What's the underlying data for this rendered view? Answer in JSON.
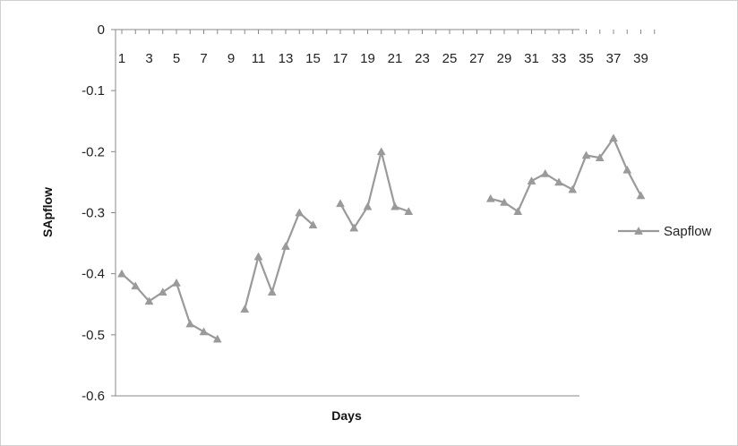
{
  "chart_data": {
    "type": "line",
    "title": "",
    "xlabel": "Days",
    "ylabel": "SApflow",
    "ylim": [
      -0.6,
      0
    ],
    "yticks": [
      0,
      -0.1,
      -0.2,
      -0.3,
      -0.4,
      -0.5,
      -0.6
    ],
    "ytick_labels": [
      "0",
      "-0.1",
      "-0.2",
      "-0.3",
      "-0.4",
      "-0.5",
      "-0.6"
    ],
    "x_range": [
      1,
      40
    ],
    "xtick_labels": [
      "1",
      "3",
      "5",
      "7",
      "9",
      "11",
      "13",
      "15",
      "17",
      "19",
      "21",
      "23",
      "25",
      "27",
      "29",
      "31",
      "33",
      "35",
      "37",
      "39"
    ],
    "xtick_values": [
      1,
      3,
      5,
      7,
      9,
      11,
      13,
      15,
      17,
      19,
      21,
      23,
      25,
      27,
      29,
      31,
      33,
      35,
      37,
      39
    ],
    "grid": false,
    "legend": "right",
    "line_color": "#9a9a9a",
    "series": [
      {
        "name": "Sapflow",
        "x": [
          1,
          2,
          3,
          4,
          5,
          6,
          7,
          8,
          9,
          10,
          11,
          12,
          13,
          14,
          15,
          16,
          17,
          18,
          19,
          20,
          21,
          22,
          23,
          24,
          25,
          26,
          27,
          28,
          29,
          30,
          31,
          32,
          33,
          34,
          35,
          36,
          37,
          38,
          39,
          40
        ],
        "values": [
          -0.4,
          -0.42,
          -0.445,
          -0.43,
          -0.415,
          -0.482,
          -0.495,
          -0.507,
          null,
          -0.458,
          -0.372,
          -0.43,
          -0.355,
          -0.3,
          -0.32,
          null,
          -0.285,
          -0.325,
          -0.29,
          -0.2,
          -0.29,
          -0.298,
          null,
          null,
          null,
          null,
          null,
          -0.277,
          -0.283,
          -0.298,
          -0.248,
          -0.236,
          -0.25,
          -0.262,
          -0.206,
          -0.21,
          -0.178,
          -0.23,
          -0.272,
          null
        ]
      }
    ]
  }
}
